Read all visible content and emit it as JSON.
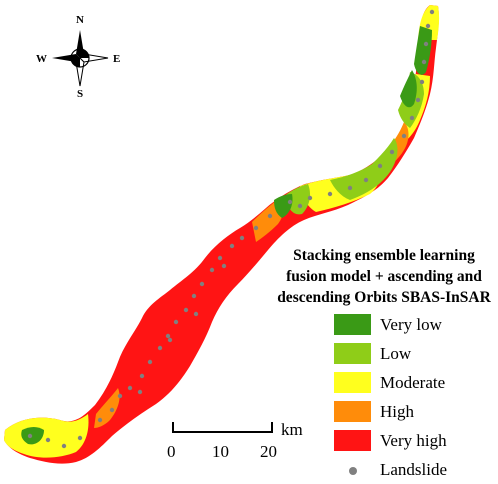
{
  "title_lines": [
    "Stacking ensemble learning",
    "fusion model + ascending and",
    "descending Orbits SBAS-InSAR"
  ],
  "legend": [
    {
      "label": "Very low",
      "color": "#3a9a16",
      "kind": "swatch"
    },
    {
      "label": "Low",
      "color": "#8fcd18",
      "kind": "swatch"
    },
    {
      "label": "Moderate",
      "color": "#ffff1e",
      "kind": "swatch"
    },
    {
      "label": "High",
      "color": "#ff8c0a",
      "kind": "swatch"
    },
    {
      "label": "Very high",
      "color": "#ff1414",
      "kind": "swatch"
    },
    {
      "label": "Landslide",
      "color": "#808080",
      "kind": "point"
    }
  ],
  "compass": {
    "n": "N",
    "s": "S",
    "e": "E",
    "w": "W"
  },
  "scale": {
    "ticks": [
      "0",
      "10",
      "20"
    ],
    "unit": "km"
  }
}
